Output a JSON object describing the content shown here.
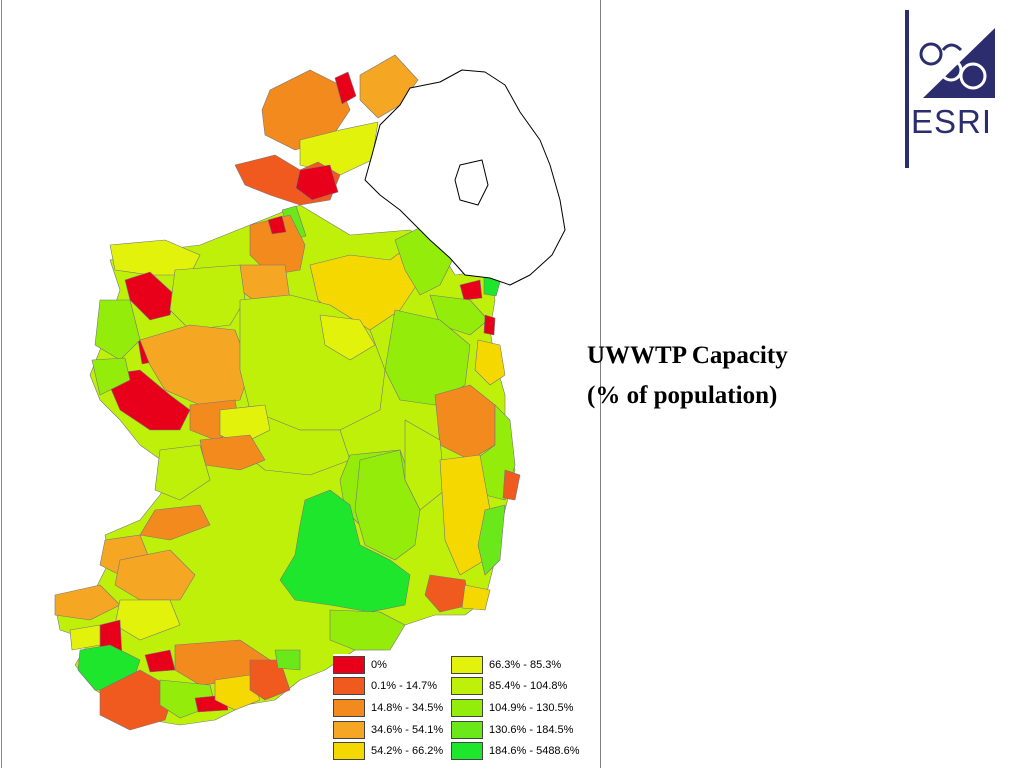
{
  "slide": {
    "title_line1": "UWWTP Capacity",
    "title_line2": "(% of population)",
    "logo": {
      "name": "esri-logo",
      "text": "ESRI",
      "color": "#2b2d6e"
    }
  },
  "map": {
    "subject": "Ireland",
    "outline_color": "#000000",
    "northern_region_fill": "#ffffff"
  },
  "legend": {
    "items": [
      {
        "label": "0%",
        "color": "#e8001a"
      },
      {
        "label": "0.1% - 14.7%",
        "color": "#f05a1e"
      },
      {
        "label": "14.8% - 34.5%",
        "color": "#f28a1e"
      },
      {
        "label": "34.6% - 54.1%",
        "color": "#f5a623"
      },
      {
        "label": "54.2% - 66.2%",
        "color": "#f5d800"
      },
      {
        "label": "66.3% - 85.3%",
        "color": "#e3f20a"
      },
      {
        "label": "85.4% - 104.8%",
        "color": "#bff00a"
      },
      {
        "label": "104.9% - 130.5%",
        "color": "#94ec0a"
      },
      {
        "label": "130.6% - 184.5%",
        "color": "#6ae81a"
      },
      {
        "label": "184.6% - 5488.6%",
        "color": "#1ee62c"
      }
    ]
  }
}
